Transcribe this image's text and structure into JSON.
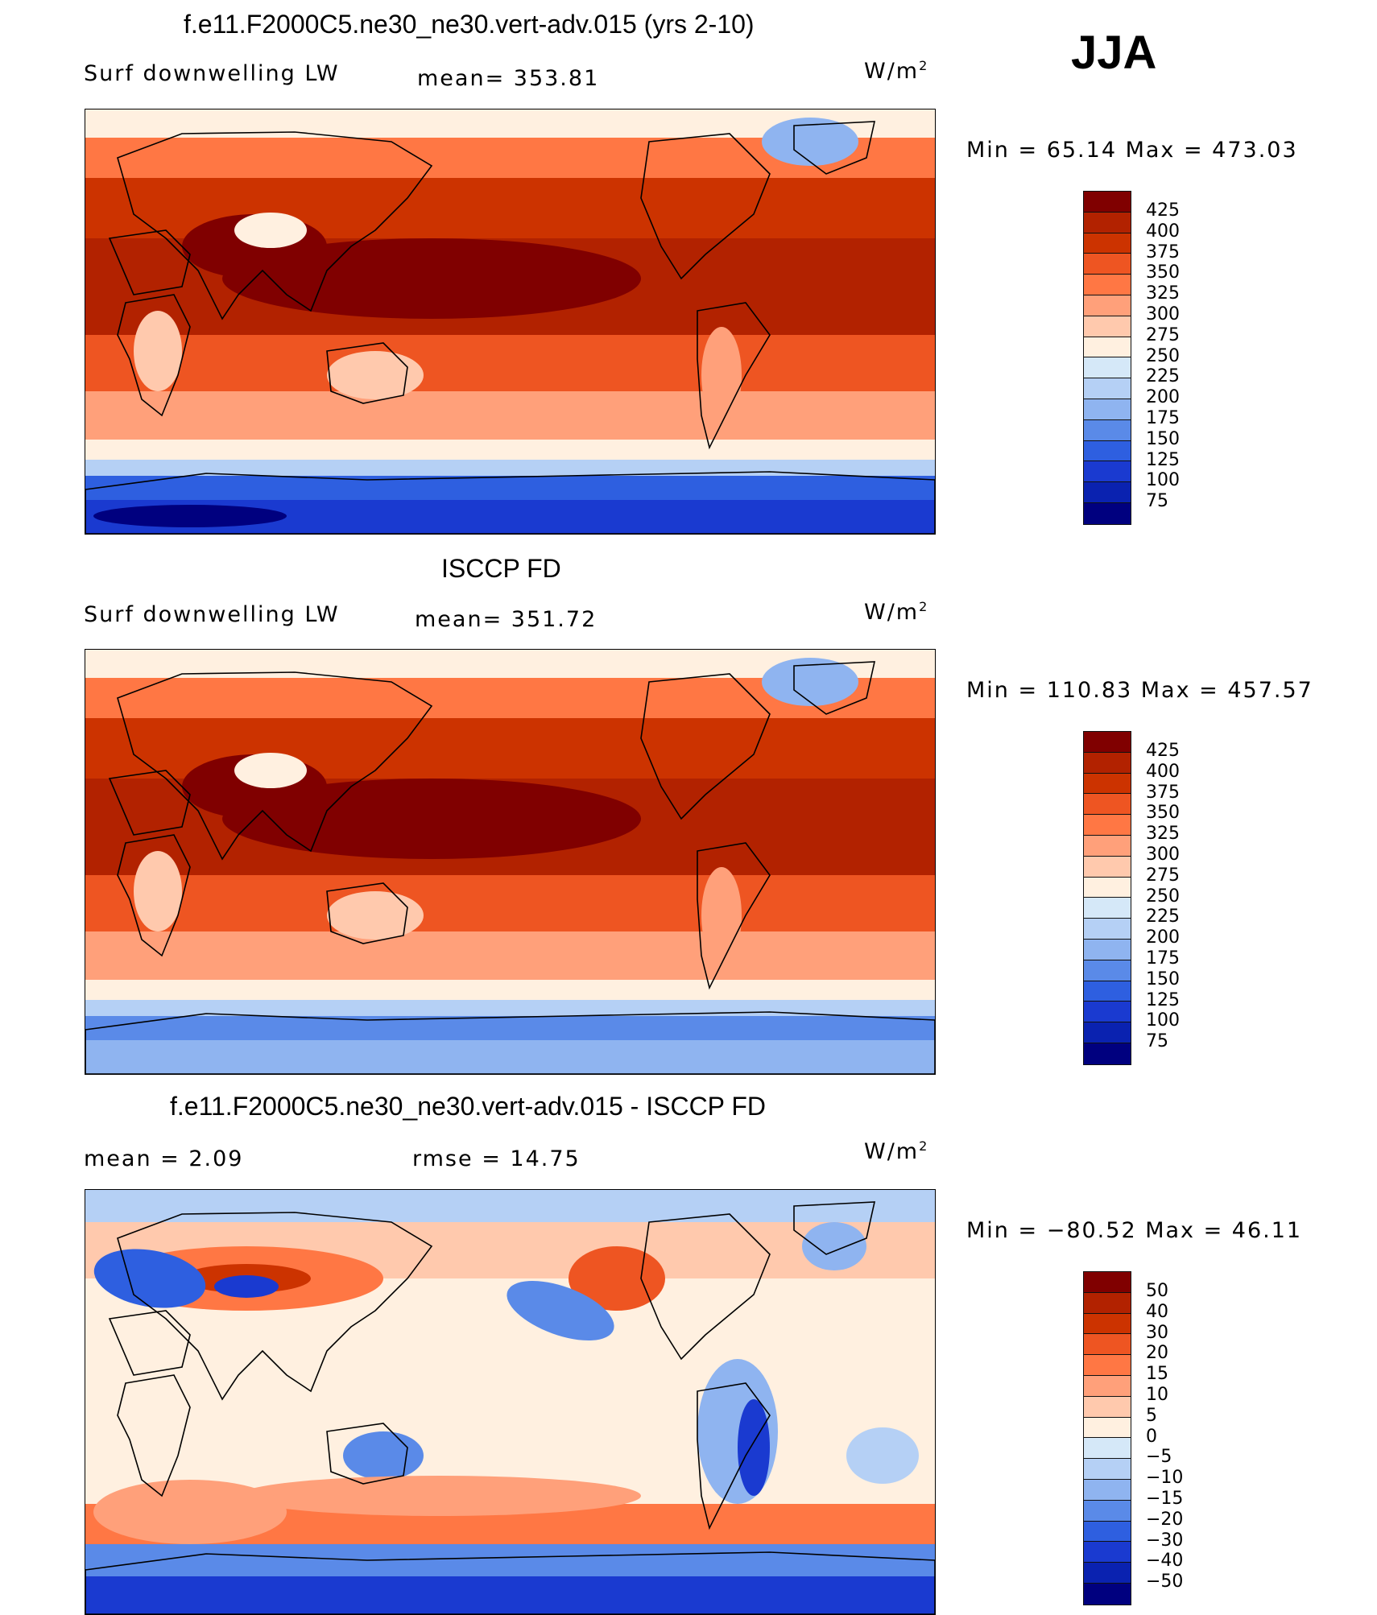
{
  "season": "JJA",
  "palette_levels": [
    "#800000",
    "#b22200",
    "#cc3300",
    "#ee5522",
    "#ff7744",
    "#ffa07a",
    "#ffc9ad",
    "#fff0e0",
    "#d5e8f8",
    "#b5d0f5",
    "#8fb4f0",
    "#5a8ae8",
    "#2e5fe0",
    "#1a3ad0",
    "#0a22b0",
    "#00007f"
  ],
  "panels": [
    {
      "title": "f.e11.F2000C5.ne30_ne30.vert-adv.015 (yrs 2-10)",
      "left_label": "Surf downwelling LW",
      "center_label": "mean= 353.81",
      "units": "W/m",
      "units_sup": "2",
      "minmax": "Min =   65.14 Max = 473.03",
      "colorbar_ticks": [
        "425",
        "400",
        "375",
        "350",
        "325",
        "300",
        "275",
        "250",
        "225",
        "200",
        "175",
        "150",
        "125",
        "100",
        "75"
      ],
      "map_style": "model"
    },
    {
      "title": "ISCCP FD",
      "left_label": "Surf downwelling LW",
      "center_label": "mean= 351.72",
      "units": "W/m",
      "units_sup": "2",
      "minmax": "Min = 110.83 Max = 457.57",
      "colorbar_ticks": [
        "425",
        "400",
        "375",
        "350",
        "325",
        "300",
        "275",
        "250",
        "225",
        "200",
        "175",
        "150",
        "125",
        "100",
        "75"
      ],
      "map_style": "obs"
    },
    {
      "title": "f.e11.F2000C5.ne30_ne30.vert-adv.015 - ISCCP FD",
      "left_label": "mean =    2.09",
      "center_label": "rmse =   14.75",
      "units": "W/m",
      "units_sup": "2",
      "minmax": "Min = −80.52 Max =   46.11",
      "colorbar_ticks": [
        "50",
        "40",
        "30",
        "20",
        "15",
        "10",
        "5",
        "0",
        "−5",
        "−10",
        "−15",
        "−20",
        "−30",
        "−40",
        "−50"
      ],
      "map_style": "diff"
    }
  ]
}
